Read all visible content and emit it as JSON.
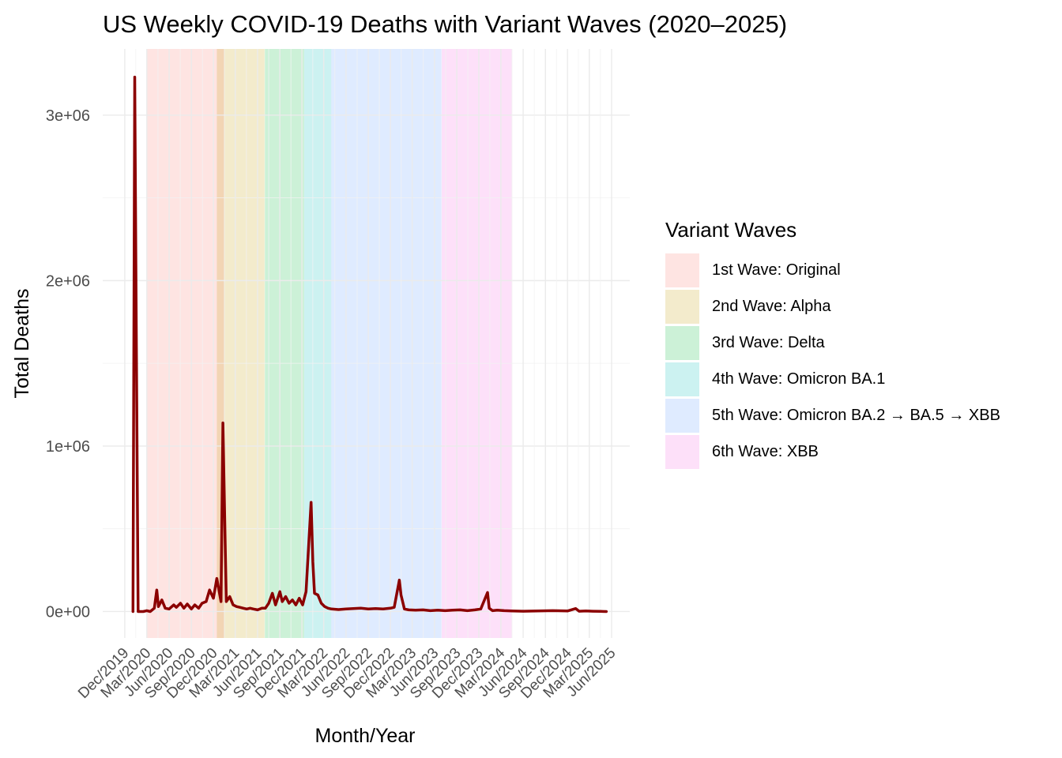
{
  "chart_data": {
    "type": "line",
    "title": "US Weekly COVID-19 Deaths with Variant Waves (2020–2025)",
    "xlabel": "Month/Year",
    "ylabel": "Total Deaths",
    "y_tick_labels": [
      "0e+00",
      "1e+06",
      "2e+06",
      "3e+06"
    ],
    "y_ticks": [
      0,
      1000000,
      2000000,
      3000000
    ],
    "ylim": [
      -160000,
      3400000
    ],
    "xlim": [
      "2019-09-01",
      "2025-08-15"
    ],
    "x_tick_labels": [
      "Dec/2019",
      "Mar/2020",
      "Jun/2020",
      "Sep/2020",
      "Dec/2020",
      "Mar/2021",
      "Jun/2021",
      "Sep/2021",
      "Dec/2021",
      "Mar/2022",
      "Jun/2022",
      "Sep/2022",
      "Dec/2022",
      "Mar/2023",
      "Jun/2023",
      "Sep/2023",
      "Dec/2023",
      "Mar/2024",
      "Jun/2024",
      "Sep/2024",
      "Dec/2024",
      "Mar/2025",
      "Jun/2025"
    ],
    "x_ticks": [
      "2019-12-01",
      "2020-03-01",
      "2020-06-01",
      "2020-09-01",
      "2020-12-01",
      "2021-03-01",
      "2021-06-01",
      "2021-09-01",
      "2021-12-01",
      "2022-03-01",
      "2022-06-01",
      "2022-09-01",
      "2022-12-01",
      "2023-03-01",
      "2023-06-01",
      "2023-09-01",
      "2023-12-01",
      "2024-03-01",
      "2024-06-01",
      "2024-09-01",
      "2024-12-01",
      "2025-03-01",
      "2025-06-01"
    ],
    "grid": true,
    "legend_title": "Variant Waves",
    "legend_position": "right",
    "waves": [
      {
        "name": "1st Wave: Original",
        "start": "2020-03-01",
        "end": "2021-01-15",
        "color": "#F8766D"
      },
      {
        "name": "2nd Wave: Alpha",
        "start": "2020-12-15",
        "end": "2021-06-30",
        "color": "#C49A00"
      },
      {
        "name": "3rd Wave: Delta",
        "start": "2021-07-01",
        "end": "2021-12-10",
        "color": "#00BA38"
      },
      {
        "name": "4th Wave: Omicron BA.1",
        "start": "2021-12-10",
        "end": "2022-04-01",
        "color": "#00C0B8"
      },
      {
        "name": "5th Wave: Omicron BA.2 → BA.5 → XBB",
        "start": "2022-04-01",
        "end": "2023-06-30",
        "color": "#619CFF"
      },
      {
        "name": "6th Wave: XBB",
        "start": "2023-07-01",
        "end": "2024-04-15",
        "color": "#F564E3"
      }
    ],
    "series": [
      {
        "line_color": "#8B0000",
        "x": [
          "2020-01-04",
          "2020-01-11",
          "2020-01-18",
          "2020-01-25",
          "2020-02-15",
          "2020-03-01",
          "2020-03-15",
          "2020-04-01",
          "2020-04-11",
          "2020-04-18",
          "2020-05-02",
          "2020-05-16",
          "2020-06-01",
          "2020-06-20",
          "2020-07-01",
          "2020-07-18",
          "2020-08-01",
          "2020-08-15",
          "2020-09-01",
          "2020-09-15",
          "2020-10-01",
          "2020-10-15",
          "2020-11-01",
          "2020-11-15",
          "2020-12-01",
          "2020-12-15",
          "2021-01-01",
          "2021-01-09",
          "2021-01-16",
          "2021-01-23",
          "2021-02-06",
          "2021-02-20",
          "2021-03-06",
          "2021-03-20",
          "2021-04-03",
          "2021-04-17",
          "2021-05-01",
          "2021-05-15",
          "2021-06-01",
          "2021-06-19",
          "2021-07-03",
          "2021-07-17",
          "2021-08-01",
          "2021-08-14",
          "2021-09-01",
          "2021-09-11",
          "2021-09-25",
          "2021-10-09",
          "2021-10-23",
          "2021-11-06",
          "2021-11-20",
          "2021-12-04",
          "2021-12-18",
          "2022-01-08",
          "2022-01-15",
          "2022-01-22",
          "2022-02-05",
          "2022-02-19",
          "2022-03-05",
          "2022-03-19",
          "2022-04-02",
          "2022-05-01",
          "2022-06-01",
          "2022-07-01",
          "2022-08-01",
          "2022-09-01",
          "2022-10-01",
          "2022-11-01",
          "2022-12-01",
          "2022-12-17",
          "2023-01-07",
          "2023-01-14",
          "2023-01-28",
          "2023-02-15",
          "2023-03-15",
          "2023-04-15",
          "2023-05-15",
          "2023-06-15",
          "2023-07-15",
          "2023-08-15",
          "2023-09-15",
          "2023-10-15",
          "2023-11-15",
          "2023-12-09",
          "2024-01-06",
          "2024-01-13",
          "2024-01-27",
          "2024-02-15",
          "2024-03-15",
          "2024-04-15",
          "2024-06-01",
          "2024-08-01",
          "2024-10-01",
          "2024-12-01",
          "2025-01-04",
          "2025-01-18",
          "2025-02-15",
          "2025-03-15",
          "2025-04-15",
          "2025-05-10"
        ],
        "y": [
          0,
          3230000,
          1600000,
          0,
          0,
          5000,
          0,
          20000,
          130000,
          30000,
          70000,
          20000,
          15000,
          40000,
          25000,
          50000,
          20000,
          45000,
          15000,
          40000,
          20000,
          50000,
          60000,
          130000,
          80000,
          200000,
          60000,
          1140000,
          580000,
          60000,
          90000,
          40000,
          30000,
          25000,
          20000,
          15000,
          20000,
          15000,
          10000,
          20000,
          20000,
          50000,
          110000,
          40000,
          120000,
          60000,
          90000,
          50000,
          70000,
          40000,
          80000,
          40000,
          120000,
          660000,
          300000,
          110000,
          100000,
          50000,
          30000,
          20000,
          15000,
          12000,
          15000,
          18000,
          20000,
          15000,
          18000,
          15000,
          20000,
          25000,
          190000,
          100000,
          15000,
          10000,
          8000,
          10000,
          5000,
          8000,
          5000,
          8000,
          10000,
          5000,
          10000,
          15000,
          115000,
          20000,
          5000,
          8000,
          5000,
          3000,
          2000,
          3000,
          5000,
          3000,
          18000,
          2000,
          3000,
          2000,
          1000,
          0
        ]
      }
    ]
  }
}
